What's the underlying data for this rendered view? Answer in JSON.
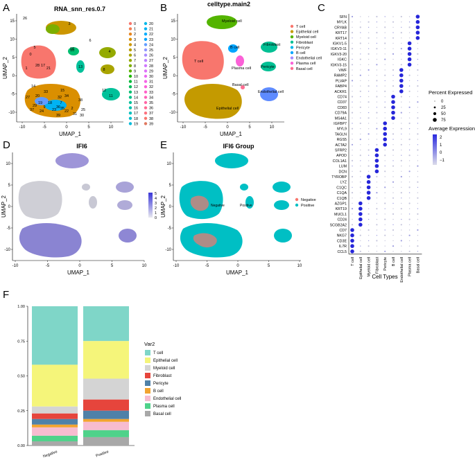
{
  "panels": {
    "A": {
      "letter": "A",
      "title": "RNA_snn_res.0.7",
      "xlabel": "UMAP_1",
      "ylabel": "UMAP_2",
      "xticks": [
        "-10",
        "-5",
        "0",
        "5",
        "10"
      ],
      "yticks": [
        "15",
        "10",
        "5",
        "0",
        "-5",
        "-10"
      ],
      "legend": [
        "0",
        "1",
        "2",
        "3",
        "4",
        "5",
        "6",
        "7",
        "8",
        "9",
        "10",
        "11",
        "12",
        "13",
        "14",
        "15",
        "16",
        "17",
        "18",
        "19",
        "20",
        "21",
        "22",
        "23",
        "24",
        "25",
        "26",
        "27",
        "28",
        "29",
        "30",
        "31",
        "32",
        "33",
        "34",
        "35",
        "36",
        "37",
        "38",
        "39"
      ],
      "legend_colors": [
        "#F8766D",
        "#F27D52",
        "#E7851E",
        "#DA8F00",
        "#CC9600",
        "#BB9D00",
        "#A9A400",
        "#94AA00",
        "#7CAE00",
        "#5BB300",
        "#1DB700",
        "#00BA38",
        "#00BC59",
        "#00BE70",
        "#00C086",
        "#00C19A",
        "#00C1AC",
        "#00C0BD",
        "#00BECC",
        "#00BBDB",
        "#00B7E8",
        "#00B2F3",
        "#00ACFC",
        "#00A5FF",
        "#619CFF",
        "#8D94FF",
        "#A88BFF",
        "#BE80FF",
        "#CF78FF",
        "#DE71F9",
        "#EA6AF1",
        "#F464E7",
        "#FB61D8",
        "#FF61C9",
        "#FF62B8",
        "#FF66A6",
        "#FF6B93",
        "#FC717F",
        "#F8766D",
        "#E0785F"
      ],
      "cluster_labels": [
        "0",
        "1",
        "2",
        "3",
        "4",
        "5",
        "6",
        "7",
        "8",
        "9",
        "10",
        "11",
        "12",
        "13",
        "14",
        "15",
        "16",
        "17",
        "18",
        "19",
        "20",
        "21",
        "22",
        "23",
        "24",
        "25",
        "26",
        "27",
        "28",
        "29",
        "30",
        "31",
        "32",
        "33",
        "34",
        "35",
        "36",
        "37",
        "38",
        "39"
      ]
    },
    "B": {
      "letter": "B",
      "title": "celltype.main2",
      "xlabel": "UMAP_1",
      "ylabel": "UMAP_2",
      "xticks": [
        "-10",
        "-5",
        "0",
        "5",
        "10"
      ],
      "yticks": [
        "15",
        "10",
        "5",
        "0",
        "-5",
        "-10"
      ],
      "legend": [
        "T cell",
        "Epithelial cell",
        "Myeloid cell",
        "Fibroblast",
        "Pericyte",
        "B cell",
        "Endothelial cell",
        "Plasma cell",
        "Basal cell"
      ],
      "legend_colors": [
        "#F8766D",
        "#C49A00",
        "#53B400",
        "#00C094",
        "#00B6EB",
        "#00A5FF",
        "#A58AFF",
        "#FB61D7",
        "#FF6C91"
      ],
      "cluster_labels": [
        "T cell",
        "Myeloid cell",
        "B cell",
        "Fibroblast",
        "Plasma cell",
        "Pericyte",
        "Basal cell",
        "Endothelial cell",
        "Epithelial cell"
      ]
    },
    "D": {
      "letter": "D",
      "title": "IFI6",
      "xlabel": "UMAP_1",
      "ylabel": "UMAP_2",
      "xticks": [
        "-10",
        "-5",
        "0",
        "5",
        "10"
      ],
      "yticks": [
        "10",
        "5",
        "0",
        "-5",
        "-10"
      ],
      "scale_ticks": [
        "5",
        "4",
        "3",
        "2",
        "1",
        "0"
      ]
    },
    "E": {
      "letter": "E",
      "title": "IFI6 Group",
      "xlabel": "UMAP_1",
      "ylabel": "UMAP_2",
      "xticks": [
        "-10",
        "-5",
        "0",
        "5",
        "10"
      ],
      "yticks": [
        "10",
        "5",
        "0",
        "-5",
        "-10"
      ],
      "legend": [
        "Negative",
        "Positive"
      ],
      "legend_colors": [
        "#F8766D",
        "#00BFC4"
      ],
      "inline_labels": [
        "Negative",
        "Positive"
      ]
    },
    "C": {
      "letter": "C",
      "xlabel": "Cell Types",
      "size_legend_title": "Percent Expressed",
      "size_legend": [
        "0",
        "25",
        "50",
        "75"
      ],
      "color_legend_title": "Average Expression",
      "color_legend": [
        "2",
        "1",
        "0",
        "−1"
      ]
    },
    "F": {
      "letter": "F",
      "legend_title": "Var2"
    }
  },
  "chart_data": [
    {
      "type": "scatter",
      "panel": "A",
      "title": "RNA_snn_res.0.7",
      "xlabel": "UMAP_1",
      "ylabel": "UMAP_2",
      "xlim": [
        -10,
        14
      ],
      "ylim": [
        -14,
        16
      ],
      "clusters": [
        {
          "label": "0",
          "x": -6,
          "y": 2
        },
        {
          "label": "3",
          "x": -2,
          "y": 13
        },
        {
          "label": "4",
          "x": 10,
          "y": 4
        },
        {
          "label": "11",
          "x": 11,
          "y": -7
        },
        {
          "label": "12",
          "x": 11,
          "y": -6
        }
      ]
    },
    {
      "type": "scatter",
      "panel": "B",
      "title": "celltype.main2",
      "xlabel": "UMAP_1",
      "ylabel": "UMAP_2",
      "xlim": [
        -10,
        14
      ],
      "ylim": [
        -14,
        16
      ],
      "clusters": [
        {
          "label": "T cell",
          "x": -6,
          "y": 2
        },
        {
          "label": "Myeloid cell",
          "x": -2,
          "y": 13
        },
        {
          "label": "B cell",
          "x": 0,
          "y": 5
        },
        {
          "label": "Fibroblast",
          "x": 10,
          "y": 4
        },
        {
          "label": "Plasma cell",
          "x": 3,
          "y": 1
        },
        {
          "label": "Pericyte",
          "x": 9,
          "y": 1
        },
        {
          "label": "Basal cell",
          "x": 2,
          "y": -4
        },
        {
          "label": "Endothelial cell",
          "x": 11,
          "y": -6
        },
        {
          "label": "Epithelial cell",
          "x": -2,
          "y": -8
        }
      ]
    },
    {
      "type": "dotplot",
      "panel": "C",
      "xlabel": "Cell Types",
      "x": [
        "T cell",
        "Epithelial cell",
        "Myeloid cell",
        "Fibroblast",
        "Pericyte",
        "B cell",
        "Endothelial cell",
        "Plasma cell",
        "Basal cell"
      ],
      "genes": [
        "SFN",
        "MYLK",
        "CRYAB",
        "KRT17",
        "KRT14",
        "IGKV1-5",
        "IGKV3-11",
        "IGKV3-20",
        "IGKC",
        "IGKV3-15",
        "VWF",
        "RAMP2",
        "PLVAP",
        "FABP4",
        "ACKR1",
        "CD74",
        "CD37",
        "CD83",
        "CD79A",
        "MS4A1",
        "IGFBP7",
        "MYL9",
        "TAGLN",
        "RGS5",
        "ACTA2",
        "SFRP2",
        "APOD",
        "COL1A1",
        "LUM",
        "DCN",
        "TYROBP",
        "LYZ",
        "C1QC",
        "C1QA",
        "C1QB",
        "AZGP1",
        "KRT19",
        "MUCL1",
        "CD24",
        "SCGB2A2",
        "CD7",
        "NKG7",
        "CD3E",
        "IL7R",
        "CCL5"
      ],
      "groups_highlight": [
        8,
        8,
        8,
        8,
        8,
        7,
        7,
        7,
        7,
        7,
        6,
        6,
        6,
        6,
        6,
        5,
        5,
        5,
        5,
        5,
        4,
        4,
        4,
        4,
        4,
        3,
        3,
        3,
        3,
        3,
        2,
        2,
        2,
        2,
        2,
        1,
        1,
        1,
        1,
        1,
        0,
        0,
        0,
        0,
        0
      ],
      "size_legend": [
        0,
        25,
        50,
        75
      ],
      "color_range": [
        -1,
        2
      ]
    },
    {
      "type": "scatter",
      "panel": "D",
      "title": "IFI6",
      "xlabel": "UMAP_1",
      "ylabel": "UMAP_2",
      "xlim": [
        -10,
        14
      ],
      "ylim": [
        -14,
        14
      ],
      "color_range": [
        0,
        5
      ]
    },
    {
      "type": "scatter",
      "panel": "E",
      "title": "IFI6 Group",
      "xlabel": "UMAP_1",
      "ylabel": "UMAP_2",
      "xlim": [
        -10,
        14
      ],
      "ylim": [
        -14,
        14
      ],
      "legend": [
        "Negative",
        "Positive"
      ]
    },
    {
      "type": "bar",
      "panel": "F",
      "stacked": true,
      "categories": [
        "Negative",
        "Positive"
      ],
      "yticks": [
        "1.00",
        "0.75",
        "0.50",
        "0.25",
        "0.00"
      ],
      "ylim": [
        0,
        1
      ],
      "legend_title": "Var2",
      "series": [
        {
          "name": "T cell",
          "color": "#7FD6C8",
          "values": [
            0.42,
            0.25
          ]
        },
        {
          "name": "Epithelial cell",
          "color": "#F5F57A",
          "values": [
            0.3,
            0.27
          ]
        },
        {
          "name": "Myeloid cell",
          "color": "#D4D4D4",
          "values": [
            0.05,
            0.15
          ]
        },
        {
          "name": "Fibroblast",
          "color": "#E6453C",
          "values": [
            0.04,
            0.08
          ]
        },
        {
          "name": "Pericyte",
          "color": "#4F81A8",
          "values": [
            0.04,
            0.06
          ]
        },
        {
          "name": "B cell",
          "color": "#F2A430",
          "values": [
            0.02,
            0.02
          ]
        },
        {
          "name": "Endothelial cell",
          "color": "#F7BCD0",
          "values": [
            0.06,
            0.06
          ]
        },
        {
          "name": "Plasma cell",
          "color": "#4FD28A",
          "values": [
            0.04,
            0.05
          ]
        },
        {
          "name": "Basal cell",
          "color": "#A8A8A8",
          "values": [
            0.03,
            0.06
          ]
        }
      ]
    }
  ]
}
